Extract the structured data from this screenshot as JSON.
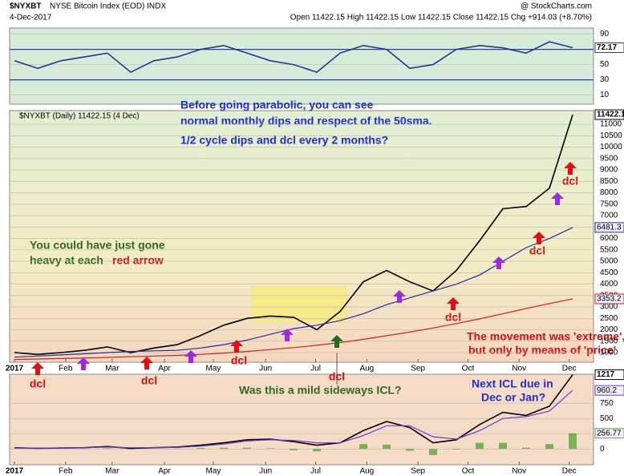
{
  "header": {
    "symbol": "$NYXBT",
    "name": "NYSE Bitcoin Index (EOD) INDX",
    "date": "4-Dec-2017",
    "quote": "Open 11422.15 High 11422.15 Low 11422.15 Close 11422.15 Chg +914.03 (+8.70%)",
    "source": "@ StockCharts.com",
    "legend": "$NYXBT (Daily) 11422.15 (4 Dec)"
  },
  "annotations": [
    "Before going parabolic, you can see",
    "normal monthly dips and respect of the 50sma.",
    "1/2 cycle dips and dcl every 2 months?",
    "You could have just gone",
    "heavy at each",
    "red arrow",
    "The movement was 'extreme',",
    "but only by means of 'price'",
    "Was this a mild sideways ICL?",
    "Next ICL due in",
    "Dec or Jan?",
    "dcl",
    "dcl",
    "dcl",
    "dcl",
    "dcl",
    "dcl",
    "dcl"
  ],
  "chart_data": [
    {
      "type": "line",
      "x": [
        0,
        2,
        4,
        6,
        8,
        10,
        12,
        14,
        16,
        18,
        20,
        22,
        24,
        26,
        28,
        30,
        32,
        34,
        36,
        38,
        40,
        42,
        44,
        46,
        48
      ],
      "xlim": [
        0,
        48
      ],
      "ylim": [
        -2,
        98
      ],
      "yticks": [
        10,
        30,
        50,
        70,
        90
      ],
      "grid": true,
      "series": [
        {
          "name": "RSI",
          "color": "#1f3a8a",
          "values": [
            55,
            45,
            55,
            60,
            65,
            40,
            55,
            60,
            70,
            75,
            65,
            55,
            50,
            40,
            65,
            75,
            70,
            45,
            50,
            70,
            75,
            72,
            65,
            80,
            72.17
          ]
        }
      ]
    },
    {
      "type": "line",
      "x": [
        0,
        2,
        4,
        6,
        8,
        10,
        12,
        14,
        16,
        18,
        20,
        22,
        24,
        26,
        28,
        30,
        32,
        34,
        36,
        38,
        40,
        42,
        44,
        46,
        48
      ],
      "xlim": [
        0,
        48
      ],
      "ylim": [
        580,
        11600
      ],
      "yticks": [
        1000,
        1500,
        2000,
        2500,
        3000,
        3500,
        4000,
        4500,
        5000,
        5500,
        6000,
        6500,
        7000,
        7500,
        8000,
        8500,
        9000,
        9500,
        10000,
        10500,
        11000
      ],
      "grid": true,
      "xticks": [
        {
          "value": 0,
          "label": "2017"
        },
        {
          "value": 4.4,
          "label": "Feb"
        },
        {
          "value": 8.4,
          "label": "Mar"
        },
        {
          "value": 12.9,
          "label": "Apr"
        },
        {
          "value": 17.1,
          "label": "May"
        },
        {
          "value": 21.6,
          "label": "Jun"
        },
        {
          "value": 25.9,
          "label": "Jul"
        },
        {
          "value": 30.3,
          "label": "Aug"
        },
        {
          "value": 34.7,
          "label": "Sep"
        },
        {
          "value": 39,
          "label": "Oct"
        },
        {
          "value": 43.4,
          "label": "Nov"
        },
        {
          "value": 47.7,
          "label": "Dec"
        }
      ],
      "series": [
        {
          "name": "$NYXBT",
          "color": "#000000",
          "values": [
            1000,
            920,
            1000,
            1100,
            1250,
            1000,
            1200,
            1350,
            1750,
            2200,
            2500,
            2600,
            2550,
            2000,
            2800,
            4100,
            4600,
            4100,
            3700,
            4600,
            5900,
            7300,
            7400,
            8200,
            11422.15
          ]
        },
        {
          "name": "MA(50)",
          "color": "#1f2fa0",
          "values": [
            800,
            850,
            900,
            950,
            1000,
            1050,
            1080,
            1100,
            1200,
            1350,
            1550,
            1800,
            2050,
            2200,
            2400,
            2700,
            3100,
            3400,
            3700,
            4000,
            4400,
            5000,
            5600,
            6000,
            6481.3
          ]
        },
        {
          "name": "MA(200)",
          "color": "#d02020",
          "values": [
            700,
            720,
            740,
            760,
            790,
            820,
            850,
            880,
            920,
            980,
            1050,
            1130,
            1220,
            1320,
            1440,
            1580,
            1740,
            1900,
            2080,
            2270,
            2480,
            2700,
            2930,
            3150,
            3353.2
          ]
        }
      ]
    },
    {
      "type": "line",
      "x": [
        0,
        2,
        4,
        6,
        8,
        10,
        12,
        14,
        16,
        18,
        20,
        22,
        24,
        26,
        28,
        30,
        32,
        34,
        36,
        38,
        40,
        42,
        44,
        46,
        48
      ],
      "xlim": [
        0,
        48
      ],
      "ylim": [
        -260,
        1225
      ],
      "yticks": [
        0,
        250,
        500,
        750
      ],
      "grid": true,
      "xticks": [
        {
          "value": 0,
          "label": "2017"
        },
        {
          "value": 4.4,
          "label": "Feb"
        },
        {
          "value": 8.4,
          "label": "Mar"
        },
        {
          "value": 12.9,
          "label": "Apr"
        },
        {
          "value": 17.1,
          "label": "May"
        },
        {
          "value": 21.6,
          "label": "Jun"
        },
        {
          "value": 25.9,
          "label": "Jul"
        },
        {
          "value": 30.3,
          "label": "Aug"
        },
        {
          "value": 34.7,
          "label": "Sep"
        },
        {
          "value": 39,
          "label": "Oct"
        },
        {
          "value": 43.4,
          "label": "Nov"
        },
        {
          "value": 47.7,
          "label": "Dec"
        }
      ],
      "series": [
        {
          "name": "MACD",
          "color": "#000000",
          "values": [
            20,
            10,
            15,
            20,
            40,
            10,
            20,
            30,
            60,
            100,
            150,
            160,
            120,
            60,
            100,
            300,
            450,
            350,
            100,
            150,
            400,
            600,
            550,
            700,
            1217
          ]
        },
        {
          "name": "Signal",
          "color": "#6a3ad0",
          "values": [
            15,
            15,
            15,
            18,
            30,
            20,
            20,
            25,
            45,
            80,
            130,
            150,
            140,
            100,
            100,
            220,
            380,
            380,
            200,
            160,
            300,
            500,
            530,
            620,
            960.2
          ]
        },
        {
          "name": "Histogram",
          "type": "bar",
          "color": "#5aa83a",
          "values": [
            5,
            -5,
            0,
            2,
            10,
            -10,
            0,
            5,
            15,
            20,
            20,
            10,
            -20,
            -40,
            0,
            80,
            70,
            -30,
            -100,
            -10,
            100,
            100,
            20,
            80,
            256.77
          ]
        }
      ]
    }
  ]
}
